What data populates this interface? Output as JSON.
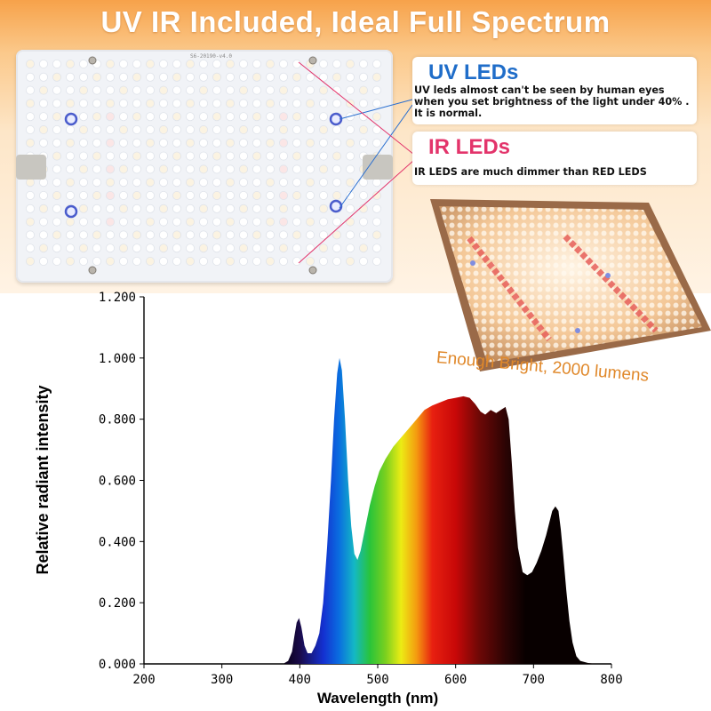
{
  "header": {
    "title": "UV IR Included, Ideal Full Spectrum"
  },
  "panel": {
    "board_label": "S6-20190-v4.0"
  },
  "uv_callout": {
    "title": "UV LEDs",
    "text": "UV leds almost can't be seen by human eyes when you set brightness of the light under 40% . It is normal."
  },
  "ir_callout": {
    "title": "IR LEDs",
    "text": "IR LEDS are much dimmer than RED LEDS"
  },
  "photo": {
    "caption": "Enough Bright, 2000 lumens"
  },
  "colors": {
    "banner_orange": "#f7a24a",
    "uv_blue": "#1f6dc9",
    "ir_pink": "#e3346b",
    "caption_orange": "#e0882a"
  },
  "chart_data": {
    "type": "area",
    "title": "",
    "xlabel": "Wavelength (nm)",
    "ylabel": "Relative radiant intensity",
    "xlim": [
      200,
      800
    ],
    "ylim": [
      0,
      1.2
    ],
    "x_ticks": [
      "200",
      "300",
      "400",
      "500",
      "600",
      "700",
      "800"
    ],
    "y_ticks": [
      "0.000",
      "0.200",
      "0.400",
      "0.600",
      "0.800",
      "1.000",
      "1.200"
    ],
    "grid": false,
    "series": [
      {
        "name": "spectrum",
        "x": [
          380,
          385,
          390,
          393,
          396,
          399,
          402,
          406,
          410,
          415,
          420,
          425,
          430,
          435,
          440,
          444,
          448,
          451,
          454,
          458,
          462,
          466,
          470,
          474,
          478,
          482,
          486,
          490,
          496,
          502,
          510,
          520,
          530,
          540,
          550,
          560,
          570,
          580,
          590,
          600,
          610,
          618,
          625,
          632,
          638,
          645,
          652,
          658,
          664,
          668,
          672,
          676,
          680,
          686,
          692,
          698,
          704,
          710,
          716,
          720,
          724,
          728,
          732,
          735,
          738,
          742,
          746,
          750,
          755,
          760,
          770,
          780
        ],
        "y": [
          0.002,
          0.01,
          0.04,
          0.09,
          0.135,
          0.15,
          0.12,
          0.06,
          0.035,
          0.035,
          0.06,
          0.1,
          0.2,
          0.38,
          0.6,
          0.8,
          0.95,
          1.0,
          0.96,
          0.8,
          0.6,
          0.45,
          0.36,
          0.34,
          0.37,
          0.42,
          0.47,
          0.52,
          0.58,
          0.63,
          0.67,
          0.71,
          0.74,
          0.77,
          0.8,
          0.83,
          0.845,
          0.855,
          0.865,
          0.87,
          0.875,
          0.87,
          0.85,
          0.825,
          0.815,
          0.83,
          0.82,
          0.83,
          0.84,
          0.8,
          0.66,
          0.5,
          0.38,
          0.3,
          0.29,
          0.3,
          0.33,
          0.37,
          0.42,
          0.46,
          0.5,
          0.515,
          0.5,
          0.44,
          0.36,
          0.24,
          0.14,
          0.07,
          0.025,
          0.01,
          0.003,
          0.0
        ]
      }
    ]
  }
}
